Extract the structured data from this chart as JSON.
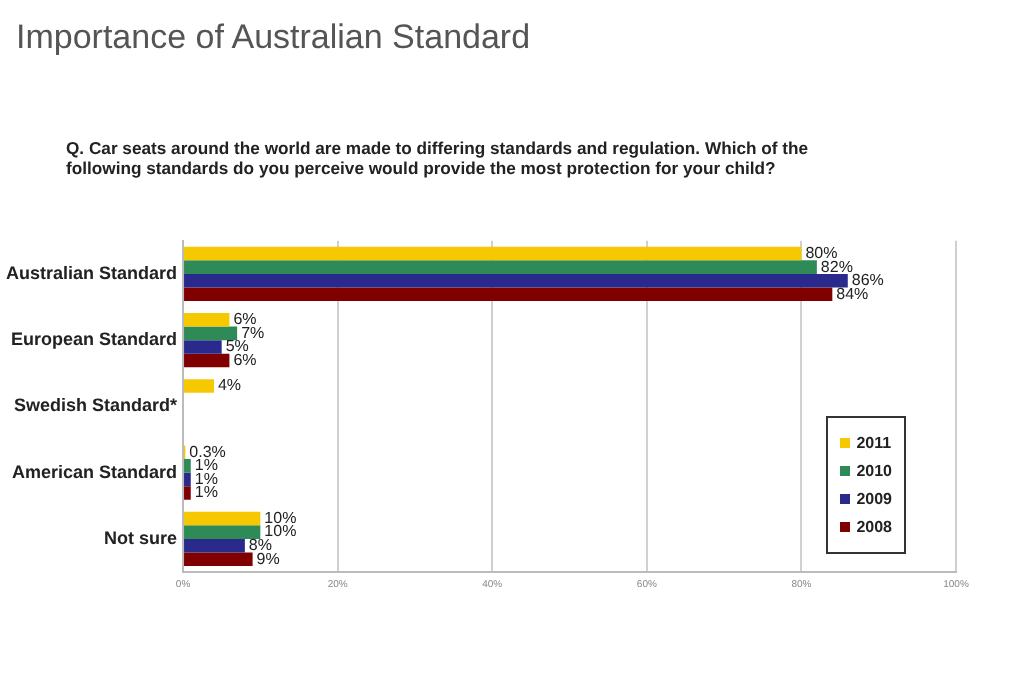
{
  "chart_data": {
    "type": "bar",
    "orientation": "horizontal",
    "title": "Importance of Australian Standard",
    "subtitle": "Q. Car seats around the world are made to differing standards and regulation. Which of the following standards do you perceive would provide the most protection for your child?",
    "categories": [
      "Australian Standard",
      "European Standard",
      "Swedish Standard*",
      "American Standard",
      "Not sure"
    ],
    "series": [
      {
        "name": "2011",
        "color": "#f5c800",
        "values": [
          80,
          6,
          4,
          0.3,
          10
        ],
        "value_labels": [
          "80%",
          "6%",
          "4%",
          "0.3%",
          "10%"
        ]
      },
      {
        "name": "2010",
        "color": "#2e8b57",
        "values": [
          82,
          7,
          null,
          1,
          10
        ],
        "value_labels": [
          "82%",
          "7%",
          null,
          "1%",
          "10%"
        ]
      },
      {
        "name": "2009",
        "color": "#2a2a8c",
        "values": [
          86,
          5,
          null,
          1,
          8
        ],
        "value_labels": [
          "86%",
          "5%",
          null,
          "1%",
          "8%"
        ]
      },
      {
        "name": "2008",
        "color": "#800000",
        "values": [
          84,
          6,
          null,
          1,
          9
        ],
        "value_labels": [
          "84%",
          "6%",
          null,
          "1%",
          "9%"
        ]
      }
    ],
    "xlim": [
      0,
      100
    ],
    "xticks": [
      {
        "value": 0,
        "label": "0%"
      },
      {
        "value": 20,
        "label": "20%"
      },
      {
        "value": 40,
        "label": "40%"
      },
      {
        "value": 60,
        "label": "60%"
      },
      {
        "value": 80,
        "label": "80%"
      },
      {
        "value": 100,
        "label": "100%"
      }
    ],
    "grid": "x",
    "legend": "bottom right"
  }
}
